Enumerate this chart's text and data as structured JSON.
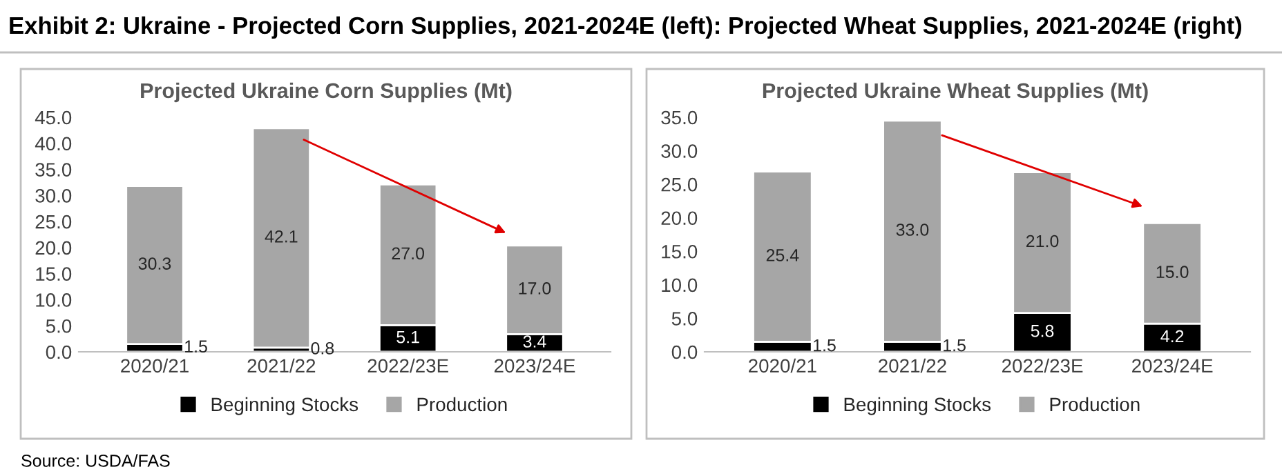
{
  "chart_data": [
    {
      "type": "bar",
      "title": "Projected Ukraine Corn Supplies (Mt)",
      "stacked": true,
      "legend": "bottom",
      "grid": false,
      "annotations": [
        "Exhibit 2: Ukraine - Projected Corn Supplies, 2021-2024E (left): Projected Wheat Supplies, 2021-2024E (right)",
        "Source: USDA/FAS"
      ],
      "categories": [
        "2020/21",
        "2021/22",
        "2022/23E",
        "2023/24E"
      ],
      "ylim": [
        0,
        45
      ],
      "yticks": [
        {
          "value": 0,
          "label": "0.0"
        },
        {
          "value": 5,
          "label": "5.0"
        },
        {
          "value": 10,
          "label": "10.0"
        },
        {
          "value": 15,
          "label": "15.0"
        },
        {
          "value": 20,
          "label": "20.0"
        },
        {
          "value": 25,
          "label": "25.0"
        },
        {
          "value": 30,
          "label": "30.0"
        },
        {
          "value": 35,
          "label": "35.0"
        },
        {
          "value": 40,
          "label": "40.0"
        },
        {
          "value": 45,
          "label": "45.0"
        }
      ],
      "series": [
        {
          "name": "Beginning Stocks",
          "color": "#000000",
          "values": [
            1.5,
            0.8,
            5.1,
            3.4
          ],
          "value_labels": [
            "1.5",
            "0.8",
            "5.1",
            "3.4"
          ]
        },
        {
          "name": "Production",
          "color": "#a6a6a6",
          "values": [
            30.3,
            42.1,
            27.0,
            17.0
          ],
          "value_labels": [
            "30.3",
            "42.1",
            "27.0",
            "17.0"
          ]
        }
      ]
    },
    {
      "type": "bar",
      "title": "Projected Ukraine Wheat Supplies (Mt)",
      "stacked": true,
      "legend": "bottom",
      "grid": false,
      "categories": [
        "2020/21",
        "2021/22",
        "2022/23E",
        "2023/24E"
      ],
      "ylim": [
        0,
        35
      ],
      "yticks": [
        {
          "value": 0,
          "label": "0.0"
        },
        {
          "value": 5,
          "label": "5.0"
        },
        {
          "value": 10,
          "label": "10.0"
        },
        {
          "value": 15,
          "label": "15.0"
        },
        {
          "value": 20,
          "label": "20.0"
        },
        {
          "value": 25,
          "label": "25.0"
        },
        {
          "value": 30,
          "label": "30.0"
        },
        {
          "value": 35,
          "label": "35.0"
        }
      ],
      "series": [
        {
          "name": "Beginning Stocks",
          "color": "#000000",
          "values": [
            1.5,
            1.5,
            5.8,
            4.2
          ],
          "value_labels": [
            "1.5",
            "1.5",
            "5.8",
            "4.2"
          ]
        },
        {
          "name": "Production",
          "color": "#a6a6a6",
          "values": [
            25.4,
            33.0,
            21.0,
            15.0
          ],
          "value_labels": [
            "25.4",
            "33.0",
            "21.0",
            "15.0"
          ]
        }
      ]
    }
  ]
}
